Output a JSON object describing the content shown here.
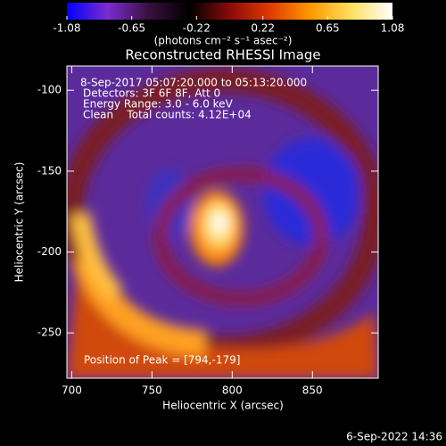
{
  "chart_data": {
    "type": "image",
    "title": "Reconstructed RHESSI Image",
    "x_label": "Heliocentric X (arcsec)",
    "y_label": "Heliocentric Y (arcsec)",
    "xlim": [
      697,
      891
    ],
    "xticks": [
      700,
      750,
      800,
      850
    ],
    "ylim": [
      -278,
      -85
    ],
    "yticks": [
      -100,
      -150,
      -200,
      -250
    ],
    "colorbar": {
      "lim": [
        -1.08,
        1.08
      ],
      "ticks": [
        -1.08,
        -0.65,
        -0.22,
        0.22,
        0.65,
        1.08
      ],
      "label": "(photons cm⁻² s⁻¹ asec⁻²)",
      "colors": [
        "#0000ff",
        "#7a2ccf",
        "#3a1040",
        "#000000",
        "#8a0a0a",
        "#e03a00",
        "#ff9a00",
        "#ffe060",
        "#ffffff"
      ]
    },
    "annotations": [
      "8-Sep-2017 05:07:20.000 to 05:13:20.000",
      "Detectors: 3F 6F 8F, Att 0",
      "Energy Range: 3.0 - 6.0 keV",
      "Clean    Total counts: 4.12E+04"
    ],
    "peak_label": "Position of Peak = [794,-179]",
    "footer": "6-Sep-2022 14:36"
  }
}
